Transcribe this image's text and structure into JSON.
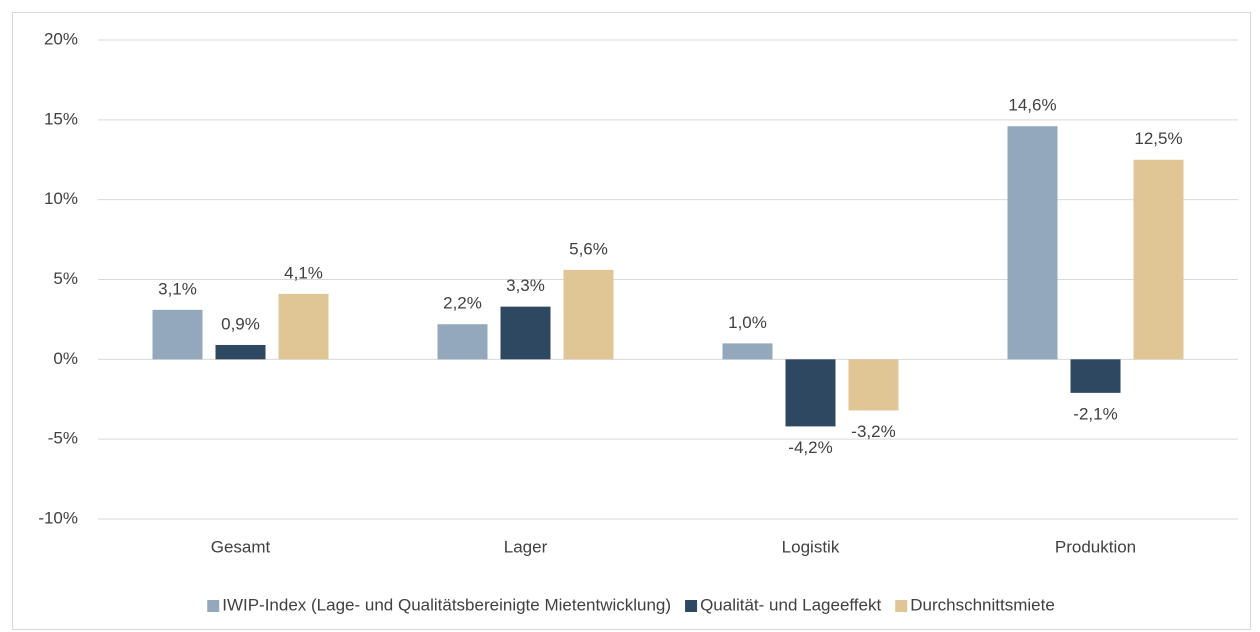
{
  "chart_data": {
    "type": "bar",
    "categories": [
      "Gesamt",
      "Lager",
      "Logistik",
      "Produktion"
    ],
    "series": [
      {
        "name": "IWIP-Index (Lage- und Qualitätsbereinigte Mietentwicklung)",
        "color": "#94a8bc",
        "values": [
          3.1,
          2.2,
          1.0,
          14.6
        ],
        "value_labels": [
          "3,1%",
          "2,2%",
          "1,0%",
          "14,6%"
        ]
      },
      {
        "name": "Qualität- und Lageeffekt",
        "color": "#2e4862",
        "values": [
          0.9,
          3.3,
          -4.2,
          -2.1
        ],
        "value_labels": [
          "0,9%",
          "3,3%",
          "-4,2%",
          "-2,1%"
        ]
      },
      {
        "name": "Durchschnittsmiete",
        "color": "#e0c695",
        "values": [
          4.1,
          5.6,
          -3.2,
          12.5
        ],
        "value_labels": [
          "4,1%",
          "5,6%",
          "-3,2%",
          "12,5%"
        ]
      }
    ],
    "ylim": [
      -10,
      20
    ],
    "yticks": [
      {
        "value": -10,
        "label": "-10%"
      },
      {
        "value": -5,
        "label": "-5%"
      },
      {
        "value": 0,
        "label": "0%"
      },
      {
        "value": 5,
        "label": "5%"
      },
      {
        "value": 10,
        "label": "10%"
      },
      {
        "value": 15,
        "label": "15%"
      },
      {
        "value": 20,
        "label": "20%"
      }
    ],
    "grid": true,
    "legend": "bottom"
  }
}
